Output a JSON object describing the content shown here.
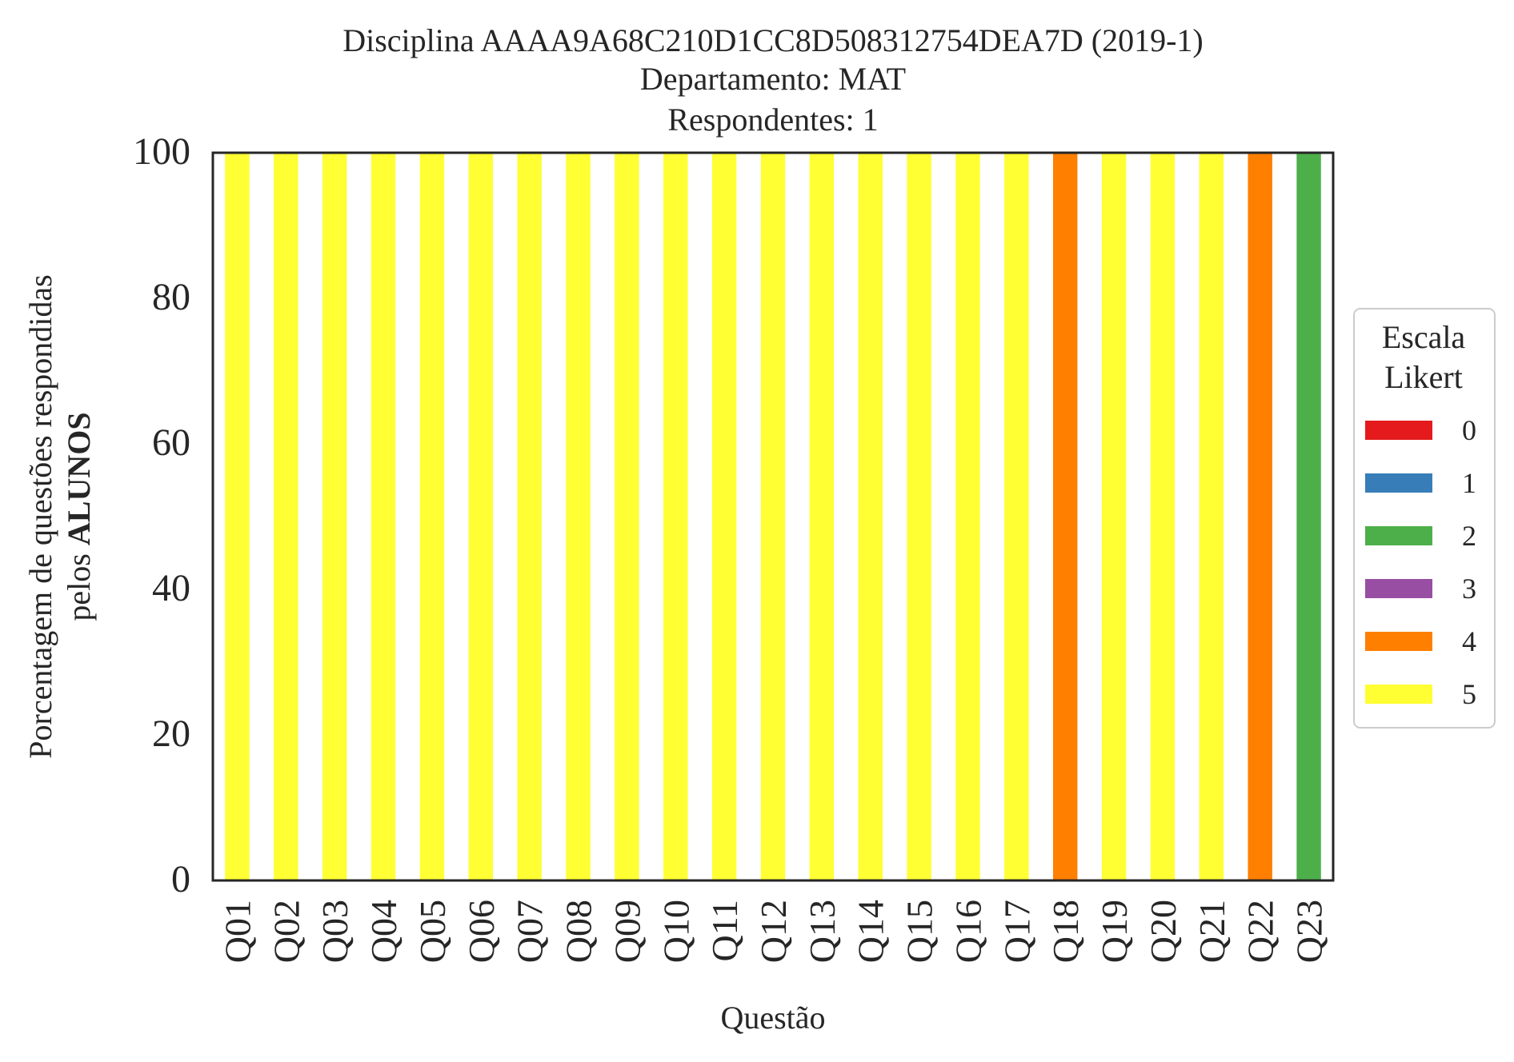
{
  "chart_data": {
    "type": "bar",
    "stacked": true,
    "title_lines": [
      "Disciplina AAAA9A68C210D1CC8D508312754DEA7D (2019-1)",
      "Departamento: MAT",
      "Respondentes: 1"
    ],
    "xlabel": "Questão",
    "ylabel_line1": "Porcentagem de questões respondidas",
    "ylabel_line2_prefix": "pelos ",
    "ylabel_line2_bold": "ALUNOS",
    "ylim": [
      0,
      100
    ],
    "yticks": [
      "0",
      "20",
      "40",
      "60",
      "80",
      "100"
    ],
    "grid": false,
    "legend_position": "right",
    "legend": {
      "title_lines": [
        "Escala",
        "Likert"
      ],
      "entries": [
        {
          "label": "0",
          "color": "#e41a1c"
        },
        {
          "label": "1",
          "color": "#377eb8"
        },
        {
          "label": "2",
          "color": "#4daf4a"
        },
        {
          "label": "3",
          "color": "#984ea3"
        },
        {
          "label": "4",
          "color": "#ff7f00"
        },
        {
          "label": "5",
          "color": "#ffff33"
        }
      ]
    },
    "categories": [
      "Q01",
      "Q02",
      "Q03",
      "Q04",
      "Q05",
      "Q06",
      "Q07",
      "Q08",
      "Q09",
      "Q10",
      "Q11",
      "Q12",
      "Q13",
      "Q14",
      "Q15",
      "Q16",
      "Q17",
      "Q18",
      "Q19",
      "Q20",
      "Q21",
      "Q22",
      "Q23"
    ],
    "series": [
      {
        "name": "0",
        "color": "#e41a1c",
        "values": [
          0,
          0,
          0,
          0,
          0,
          0,
          0,
          0,
          0,
          0,
          0,
          0,
          0,
          0,
          0,
          0,
          0,
          0,
          0,
          0,
          0,
          0,
          0
        ]
      },
      {
        "name": "1",
        "color": "#377eb8",
        "values": [
          0,
          0,
          0,
          0,
          0,
          0,
          0,
          0,
          0,
          0,
          0,
          0,
          0,
          0,
          0,
          0,
          0,
          0,
          0,
          0,
          0,
          0,
          0
        ]
      },
      {
        "name": "2",
        "color": "#4daf4a",
        "values": [
          0,
          0,
          0,
          0,
          0,
          0,
          0,
          0,
          0,
          0,
          0,
          0,
          0,
          0,
          0,
          0,
          0,
          0,
          0,
          0,
          0,
          0,
          100
        ]
      },
      {
        "name": "3",
        "color": "#984ea3",
        "values": [
          0,
          0,
          0,
          0,
          0,
          0,
          0,
          0,
          0,
          0,
          0,
          0,
          0,
          0,
          0,
          0,
          0,
          0,
          0,
          0,
          0,
          0,
          0
        ]
      },
      {
        "name": "4",
        "color": "#ff7f00",
        "values": [
          0,
          0,
          0,
          0,
          0,
          0,
          0,
          0,
          0,
          0,
          0,
          0,
          0,
          0,
          0,
          0,
          0,
          100,
          0,
          0,
          0,
          100,
          0
        ]
      },
      {
        "name": "5",
        "color": "#ffff33",
        "values": [
          100,
          100,
          100,
          100,
          100,
          100,
          100,
          100,
          100,
          100,
          100,
          100,
          100,
          100,
          100,
          100,
          100,
          0,
          100,
          100,
          100,
          0,
          0
        ]
      }
    ]
  }
}
